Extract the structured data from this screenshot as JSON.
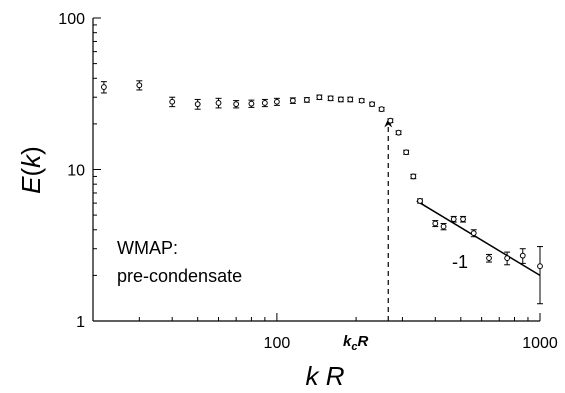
{
  "chart_data": {
    "type": "scatter",
    "xscale": "log",
    "yscale": "log",
    "xlim": [
      20,
      1000
    ],
    "ylim": [
      1,
      100
    ],
    "xlabel": {
      "var": "k",
      "rest": " R"
    },
    "ylabel": {
      "var": "E",
      "paren_open": "(",
      "arg": "k",
      "paren_close": ")"
    },
    "x_ticks": [
      100,
      1000
    ],
    "y_ticks": [
      1,
      10,
      100
    ],
    "x_tick_labels": [
      "100",
      "1000"
    ],
    "y_tick_labels": [
      "1",
      "10",
      "100"
    ],
    "points": [
      {
        "x": 22,
        "y": 35,
        "err": 3
      },
      {
        "x": 30,
        "y": 36,
        "err": 2.5
      },
      {
        "x": 40,
        "y": 28,
        "err": 2
      },
      {
        "x": 50,
        "y": 27,
        "err": 2
      },
      {
        "x": 60,
        "y": 27.5,
        "err": 2
      },
      {
        "x": 70,
        "y": 27,
        "err": 1.5
      },
      {
        "x": 80,
        "y": 27.2,
        "err": 1.5
      },
      {
        "x": 90,
        "y": 27.5,
        "err": 1.5
      },
      {
        "x": 100,
        "y": 28,
        "err": 1.5
      },
      {
        "x": 115,
        "y": 28.5,
        "err": 1.2
      },
      {
        "x": 130,
        "y": 28.8,
        "err": 1
      },
      {
        "x": 145,
        "y": 30,
        "err": 1
      },
      {
        "x": 160,
        "y": 29.5,
        "err": 1
      },
      {
        "x": 175,
        "y": 29,
        "err": 1
      },
      {
        "x": 190,
        "y": 29,
        "err": 1
      },
      {
        "x": 210,
        "y": 28.5,
        "err": 0.8
      },
      {
        "x": 230,
        "y": 27,
        "err": 0.8
      },
      {
        "x": 250,
        "y": 25,
        "err": 0.7
      },
      {
        "x": 270,
        "y": 21,
        "err": 0.6
      },
      {
        "x": 290,
        "y": 17.5,
        "err": 0.5
      },
      {
        "x": 310,
        "y": 13,
        "err": 0.4
      },
      {
        "x": 330,
        "y": 9,
        "err": 0.3
      },
      {
        "x": 350,
        "y": 6.2,
        "err": 0.2
      },
      {
        "x": 400,
        "y": 4.4,
        "err": 0.2
      },
      {
        "x": 430,
        "y": 4.2,
        "err": 0.2
      },
      {
        "x": 470,
        "y": 4.7,
        "err": 0.2
      },
      {
        "x": 510,
        "y": 4.7,
        "err": 0.2
      },
      {
        "x": 560,
        "y": 3.8,
        "err": 0.2
      },
      {
        "x": 640,
        "y": 2.6,
        "err": 0.15
      },
      {
        "x": 750,
        "y": 2.6,
        "err": 0.25
      },
      {
        "x": 860,
        "y": 2.7,
        "err": 0.3
      },
      {
        "x": 1000,
        "y": 2.3,
        "err_low": 1.0,
        "err_high": 0.8
      }
    ],
    "fit_line": {
      "x": [
        340,
        1000
      ],
      "y": [
        6.2,
        2.0
      ],
      "label": "-1"
    },
    "marker": {
      "x": 265,
      "label_var": "k",
      "label_sub": "c",
      "label_var2": "R"
    },
    "annotation": {
      "line1": "WMAP:",
      "line2": "pre-condensate"
    }
  }
}
